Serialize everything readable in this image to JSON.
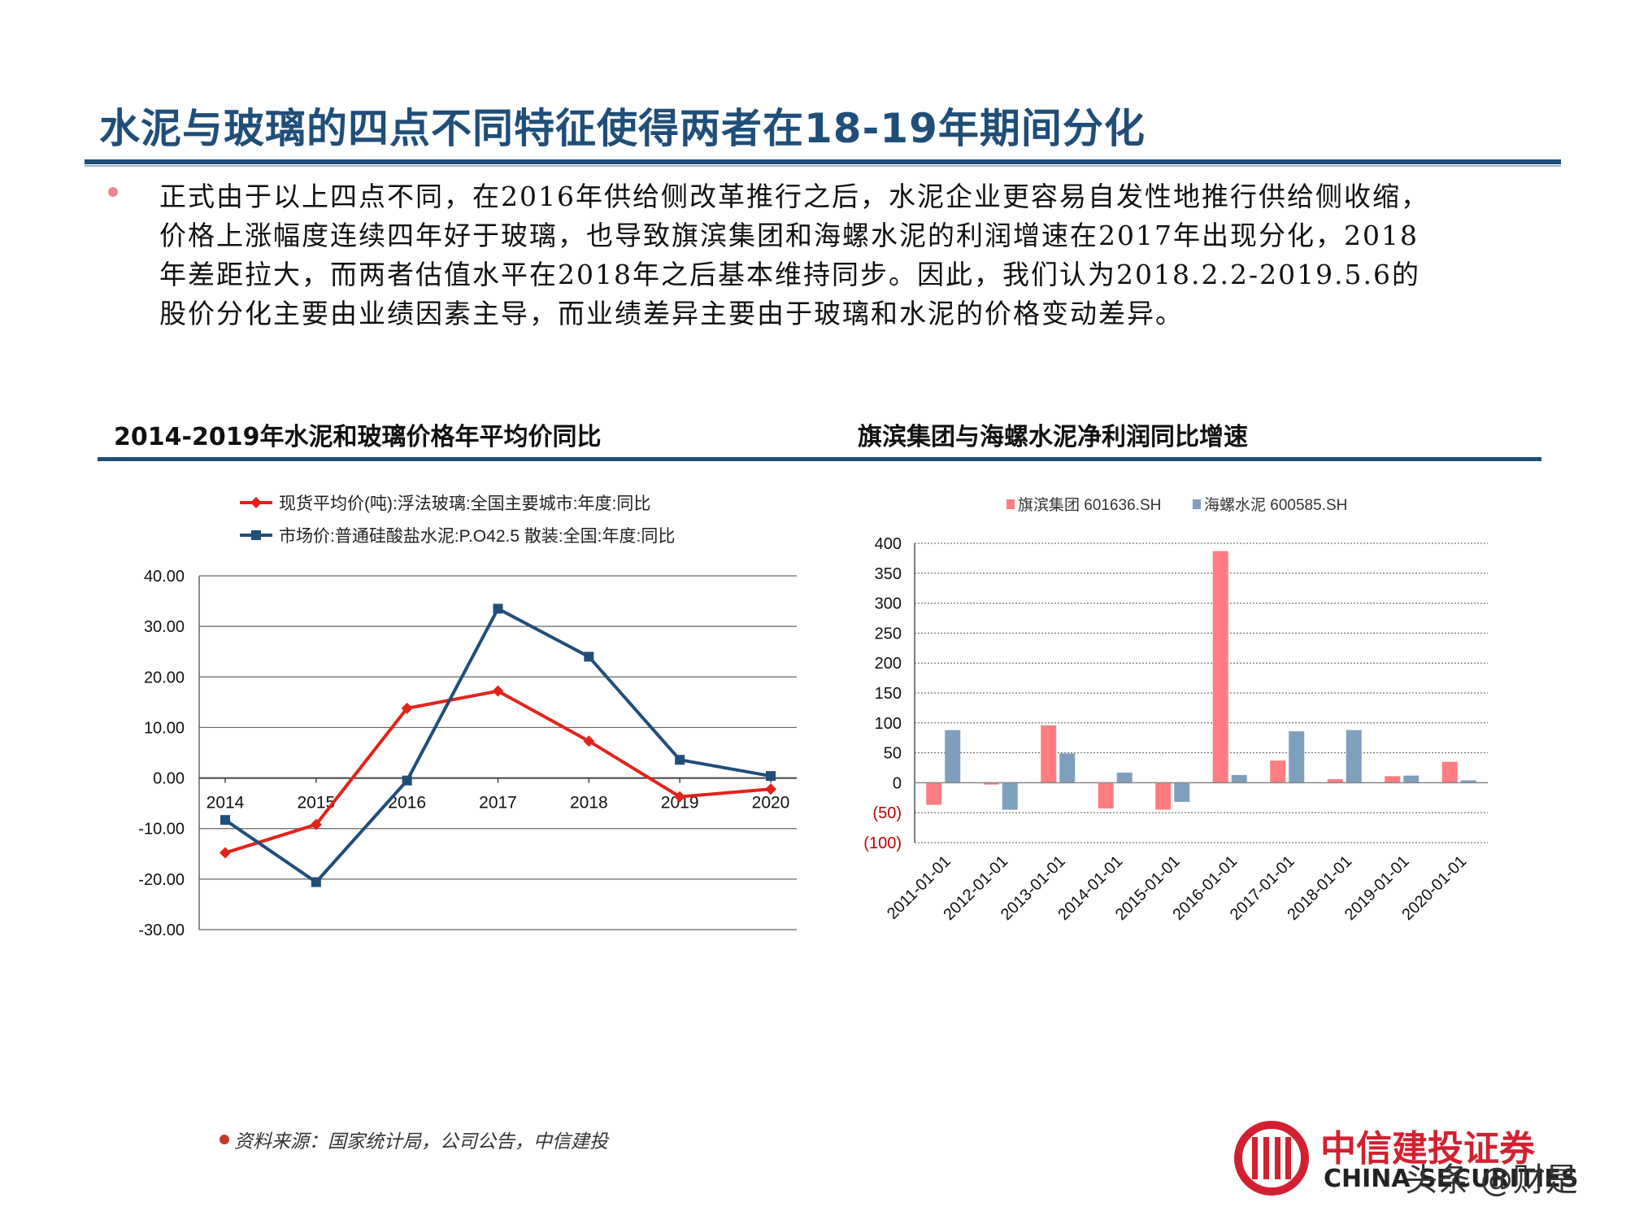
{
  "title": "水泥与玻璃的四点不同特征使得两者在18-19年期间分化",
  "body_lines": [
    "正式由于以上四点不同，在2016年供给侧改革推行之后，水泥企业更容易自发性地推行供给侧收缩，",
    "价格上涨幅度连续四年好于玻璃，也导致旗滨集团和海螺水泥的利润增速在2017年出现分化，2018",
    "年差距拉大，而两者估值水平在2018年之后基本维持同步。因此，我们认为2018.2.2-2019.5.6的",
    "股价分化主要由业绩因素主导，而业绩差异主要由于玻璃和水泥的价格变动差异。"
  ],
  "left_chart_title": "2014-2019年水泥和玻璃价格年平均价同比",
  "right_chart_title": "旗滨集团与海螺水泥净利润同比增速",
  "source": "资料来源：国家统计局，公司公告，中信建投",
  "logo": {
    "cn": "中信建投证券",
    "en": "CHINA SECURITIES"
  },
  "watermark": "头条 @财是",
  "chart_data": [
    {
      "type": "line",
      "x": [
        "2014",
        "2015",
        "2016",
        "2017",
        "2018",
        "2019",
        "2020"
      ],
      "ylim": [
        -30,
        40
      ],
      "yticks": [
        "40.00",
        "30.00",
        "20.00",
        "10.00",
        "0.00",
        "-10.00",
        "-20.00",
        "-30.00"
      ],
      "grid": true,
      "legend_position": "top",
      "series": [
        {
          "name": "现货平均价(吨):浮法玻璃:全国主要城市:年度:同比",
          "color": "#E2231A",
          "marker": "diamond",
          "values": [
            -14.8,
            -9.2,
            13.8,
            17.2,
            7.3,
            -3.7,
            -2.2
          ]
        },
        {
          "name": "市场价:普通硅酸盐水泥:P.O42.5 散装:全国:年度:同比",
          "color": "#1F4E79",
          "marker": "square",
          "values": [
            -8.3,
            -20.6,
            -0.5,
            33.5,
            24.0,
            3.6,
            0.4
          ]
        }
      ]
    },
    {
      "type": "bar",
      "categories": [
        "2011-01-01",
        "2012-01-01",
        "2013-01-01",
        "2014-01-01",
        "2015-01-01",
        "2016-01-01",
        "2017-01-01",
        "2018-01-01",
        "2019-01-01",
        "2020-01-01"
      ],
      "ylim": [
        -100,
        400
      ],
      "yticks": [
        "400",
        "350",
        "300",
        "250",
        "200",
        "150",
        "100",
        "50",
        "0",
        "(50)",
        "(100)"
      ],
      "grid": true,
      "legend_position": "top",
      "series": [
        {
          "name": "旗滨集团 601636.SH",
          "color": "#FF7C80",
          "values": [
            -37,
            -3,
            96,
            -43,
            -45,
            387,
            37,
            6,
            11,
            35
          ]
        },
        {
          "name": "海螺水泥 600585.SH",
          "color": "#7F9FBF",
          "values": [
            88,
            -45,
            49,
            17,
            -32,
            13,
            86,
            88,
            12,
            4
          ]
        }
      ]
    }
  ]
}
